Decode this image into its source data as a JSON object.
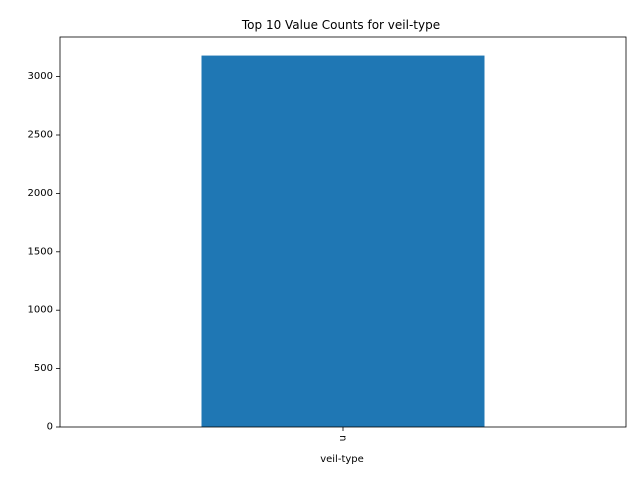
{
  "chart_data": {
    "type": "bar",
    "title": "Top 10 Value Counts for veil-type",
    "xlabel": "veil-type",
    "ylabel": "",
    "categories": [
      "u"
    ],
    "values": [
      3180
    ],
    "ylim": [
      0,
      3339
    ],
    "yticks": [
      0,
      500,
      1000,
      1500,
      2000,
      2500,
      3000
    ],
    "bar_color": "#1f77b4",
    "grid": false,
    "legend": "none"
  }
}
